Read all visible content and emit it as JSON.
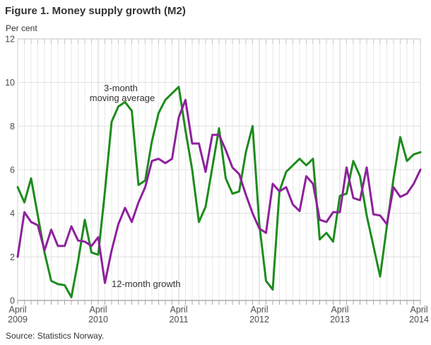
{
  "footer": {
    "source": "Source: Statistics Norway."
  },
  "colors": {
    "green_series": "#1d8c1d",
    "purple_series": "#8e219c",
    "gridline": "#e0e0e0",
    "month_gridline": "#e9e9e9",
    "april_gridline": "#d2d2d2",
    "axis_line": "#999999",
    "top_border": "#c0c0c0",
    "tick_mark": "#a8a8a8",
    "top_tick_mark": "#c6c6c6",
    "text_dark": "#333333",
    "text_axis": "#4d4d4d"
  },
  "chart_data": {
    "type": "line",
    "title": "Figure 1. Money supply growth (M2)",
    "xlabel": "",
    "ylabel": "Per cent",
    "ylim": [
      0,
      12
    ],
    "y_ticks": [
      0,
      2,
      4,
      6,
      8,
      10,
      12
    ],
    "grid": true,
    "legend_position": "inline annotations on chart",
    "x_range": {
      "start": "April 2009",
      "end": "April 2014",
      "interval": "monthly",
      "points": 61
    },
    "x_tick_labels": [
      {
        "line1": "April",
        "line2": "2009"
      },
      {
        "line1": "April",
        "line2": "2010"
      },
      {
        "line1": "April",
        "line2": "2011"
      },
      {
        "line1": "April",
        "line2": "2012"
      },
      {
        "line1": "April",
        "line2": "2013"
      },
      {
        "line1": "April",
        "line2": "2014"
      }
    ],
    "series": [
      {
        "name": "3-month moving average",
        "color": "#1d8c1d",
        "annotation": {
          "line1": "3-month",
          "line2": "moving average"
        },
        "values": [
          5.2,
          4.5,
          5.6,
          3.9,
          2.2,
          0.9,
          0.75,
          0.7,
          0.15,
          1.8,
          3.7,
          2.2,
          2.1,
          5.0,
          8.2,
          8.9,
          9.1,
          8.7,
          5.3,
          5.5,
          7.3,
          8.6,
          9.2,
          9.5,
          9.8,
          7.8,
          6.0,
          3.6,
          4.3,
          6.1,
          7.9,
          5.6,
          4.9,
          5.0,
          6.8,
          8.0,
          3.5,
          0.9,
          0.5,
          5.0,
          5.9,
          6.2,
          6.5,
          6.2,
          6.5,
          2.8,
          3.1,
          2.7,
          4.8,
          4.9,
          6.4,
          5.7,
          3.9,
          2.5,
          1.1,
          3.4,
          5.6,
          7.5,
          6.4,
          6.7,
          6.8
        ]
      },
      {
        "name": "12-month growth",
        "color": "#8e219c",
        "annotation": {
          "line1": "12-month growth",
          "line2": ""
        },
        "values": [
          2.0,
          4.05,
          3.6,
          3.45,
          2.3,
          3.25,
          2.5,
          2.5,
          3.4,
          2.75,
          2.7,
          2.5,
          2.9,
          0.8,
          2.3,
          3.5,
          4.25,
          3.6,
          4.5,
          5.2,
          6.4,
          6.5,
          6.3,
          6.5,
          8.4,
          9.2,
          7.2,
          7.2,
          5.9,
          7.6,
          7.6,
          6.9,
          6.1,
          5.8,
          4.85,
          4.0,
          3.3,
          3.1,
          5.35,
          5.0,
          5.2,
          4.4,
          4.1,
          5.7,
          5.35,
          3.7,
          3.6,
          4.05,
          4.05,
          6.1,
          4.7,
          4.6,
          6.1,
          3.95,
          3.9,
          3.5,
          5.2,
          4.75,
          4.9,
          5.35,
          6.0
        ]
      }
    ]
  }
}
